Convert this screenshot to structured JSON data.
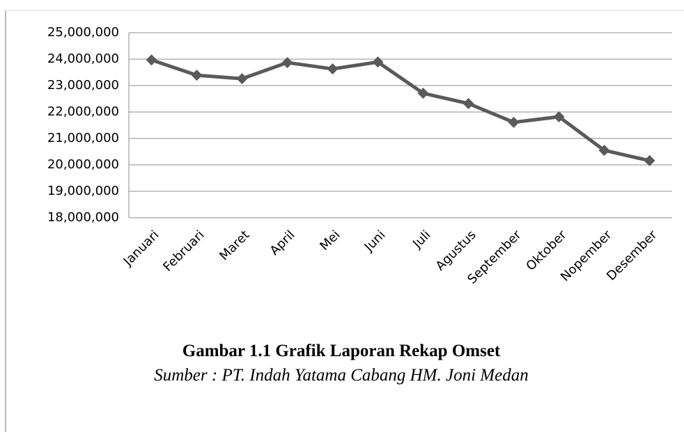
{
  "chart_data": {
    "type": "line",
    "title": "Gambar 1.1 Grafik Laporan Rekap Omset",
    "subtitle": "Sumber : PT. Indah Yatama Cabang HM. Joni Medan",
    "categories": [
      "Januari",
      "Februari",
      "Maret",
      "April",
      "Mei",
      "Juni",
      "Juli",
      "Agustus",
      "September",
      "Oktober",
      "Nopember",
      "Desember"
    ],
    "series": [
      {
        "name": "Omset",
        "color": "#5a5a5a",
        "values": [
          23970000,
          23390000,
          23260000,
          23870000,
          23630000,
          23890000,
          22710000,
          22320000,
          21610000,
          21820000,
          20550000,
          20160000
        ]
      }
    ],
    "ylim": [
      18000000,
      25000000
    ],
    "yticks": [
      {
        "value": 18000000,
        "label": "18,000,000"
      },
      {
        "value": 19000000,
        "label": "19,000,000"
      },
      {
        "value": 20000000,
        "label": "20,000,000"
      },
      {
        "value": 21000000,
        "label": "21,000,000"
      },
      {
        "value": 22000000,
        "label": "22,000,000"
      },
      {
        "value": 23000000,
        "label": "23,000,000"
      },
      {
        "value": 24000000,
        "label": "24,000,000"
      },
      {
        "value": 25000000,
        "label": "25,000,000"
      }
    ],
    "grid": true
  }
}
